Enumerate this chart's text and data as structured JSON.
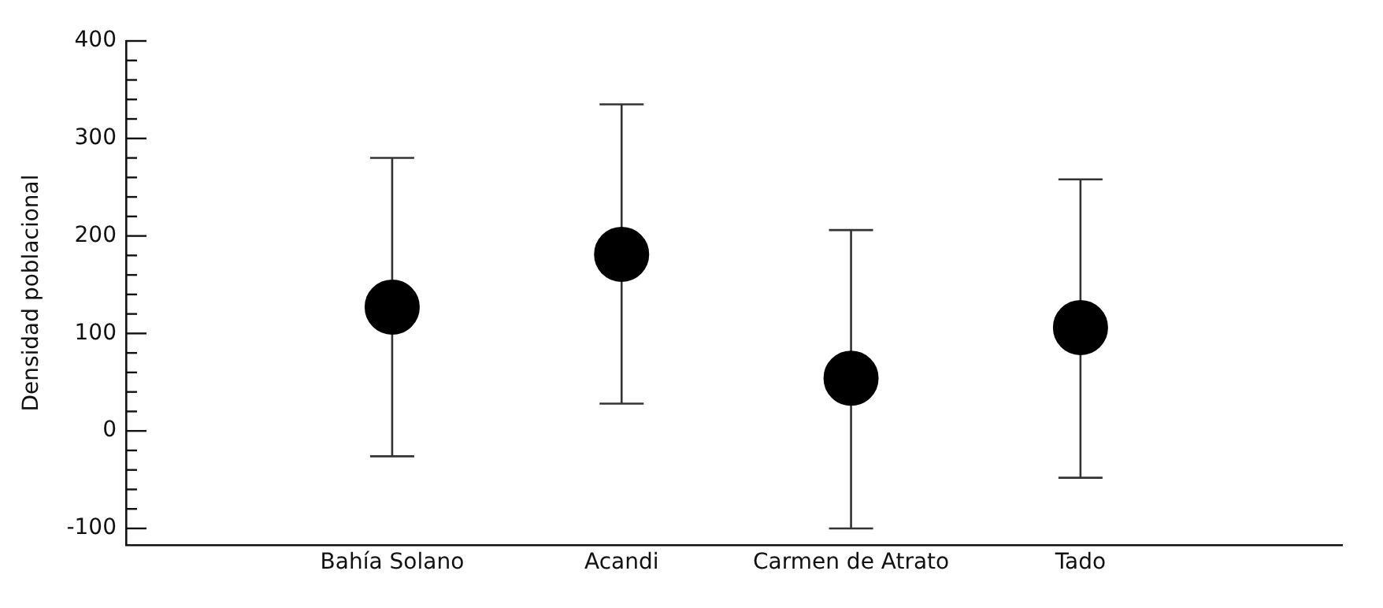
{
  "chart_data": {
    "type": "scatter",
    "ylabel": "Densidad poblacional",
    "categories": [
      "Bahía Solano",
      "Acandi",
      "Carmen de Atrato",
      "Tado"
    ],
    "values": [
      127,
      181,
      54,
      106
    ],
    "errors": [
      [
        -26,
        280
      ],
      [
        28,
        335
      ],
      [
        -100,
        206
      ],
      [
        -48,
        258
      ]
    ],
    "color": "#000000",
    "marker": "circle",
    "grid": false,
    "legend": false,
    "ylim": [
      -117,
      400
    ],
    "yticks": [
      {
        "value": -100,
        "label": "-100"
      },
      {
        "value": -80,
        "label": null
      },
      {
        "value": -60,
        "label": null
      },
      {
        "value": -40,
        "label": null
      },
      {
        "value": -20,
        "label": null
      },
      0,
      {
        "value": 20,
        "label": null
      },
      {
        "value": 40,
        "label": null
      },
      {
        "value": 60,
        "label": null
      },
      {
        "value": 80,
        "label": null
      },
      100,
      {
        "value": 120,
        "label": null
      },
      {
        "value": 140,
        "label": null
      },
      {
        "value": 160,
        "label": null
      },
      {
        "value": 180,
        "label": null
      },
      200,
      {
        "value": 220,
        "label": null
      },
      {
        "value": 240,
        "label": null
      },
      {
        "value": 260,
        "label": null
      },
      {
        "value": 280,
        "label": null
      },
      300,
      {
        "value": 320,
        "label": null
      },
      {
        "value": 340,
        "label": null
      },
      {
        "value": 360,
        "label": null
      },
      {
        "value": 380,
        "label": null
      },
      400
    ]
  }
}
